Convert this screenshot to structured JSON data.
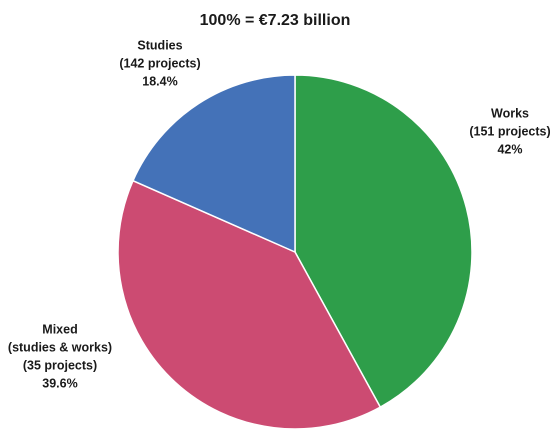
{
  "chart_data": {
    "type": "pie",
    "subtitle": "100% = €7.23 billion",
    "categories": [
      "Works",
      "Mixed",
      "Studies"
    ],
    "details": [
      [
        "(151 projects)"
      ],
      [
        "(studies & works)",
        "(35 projects)"
      ],
      [
        "(142 projects)"
      ]
    ],
    "values": [
      42,
      39.6,
      18.4
    ],
    "value_labels": [
      "42%",
      "39.6%",
      "18.4%"
    ],
    "colors": [
      "#2e9e4a",
      "#cc4b72",
      "#4472b8"
    ]
  }
}
